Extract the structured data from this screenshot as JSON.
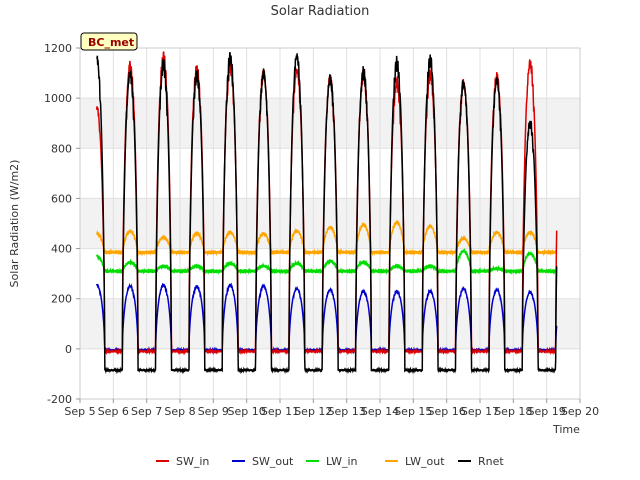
{
  "chart_data": {
    "type": "line",
    "title": "Solar Radiation",
    "xlabel": "Time",
    "ylabel": "Solar Radiation (W/m2)",
    "badge": "BC_met",
    "ylim": [
      -200,
      1200
    ],
    "yticks": [
      -200,
      0,
      200,
      400,
      600,
      800,
      1000,
      1200
    ],
    "xlim": [
      5,
      20
    ],
    "xticks": [
      5,
      6,
      7,
      8,
      9,
      10,
      11,
      12,
      13,
      14,
      15,
      16,
      17,
      18,
      19,
      20
    ],
    "xtick_labels": [
      "Sep 5",
      "Sep 6",
      "Sep 7",
      "Sep 8",
      "Sep 9",
      "Sep 10",
      "Sep 11",
      "Sep 12",
      "Sep 13",
      "Sep 14",
      "Sep 15",
      "Sep 16",
      "Sep 17",
      "Sep 18",
      "Sep 19",
      "Sep 20"
    ],
    "data_range_days": [
      5.5,
      19.3
    ],
    "grid": true,
    "shaded_bands": true,
    "legend_position": "bottom",
    "series": [
      {
        "name": "SW_in",
        "color": "#dd0000",
        "daily_peak": [
          980,
          1150,
          1190,
          1140,
          1150,
          1120,
          1130,
          1100,
          1120,
          1090,
          1120,
          1080,
          1110,
          1160
        ],
        "night_value": -10
      },
      {
        "name": "SW_out",
        "color": "#0000cc",
        "daily_peak": [
          260,
          255,
          260,
          255,
          260,
          255,
          245,
          240,
          235,
          235,
          235,
          245,
          240,
          230
        ],
        "night_value": -5
      },
      {
        "name": "LW_in",
        "color": "#00dd00",
        "daily_peak": [
          370,
          345,
          330,
          330,
          340,
          330,
          340,
          350,
          345,
          330,
          330,
          390,
          320,
          380
        ],
        "night_value": 310
      },
      {
        "name": "LW_out",
        "color": "#ffa500",
        "daily_peak": [
          460,
          470,
          445,
          460,
          465,
          460,
          470,
          485,
          495,
          505,
          490,
          440,
          465,
          465
        ],
        "night_value": 385
      },
      {
        "name": "Rnet",
        "color": "#000000",
        "daily_peak": [
          1180,
          1120,
          1160,
          1120,
          1190,
          1120,
          1190,
          1100,
          1130,
          1170,
          1180,
          1080,
          1090,
          920
        ],
        "night_value": -85
      }
    ]
  }
}
